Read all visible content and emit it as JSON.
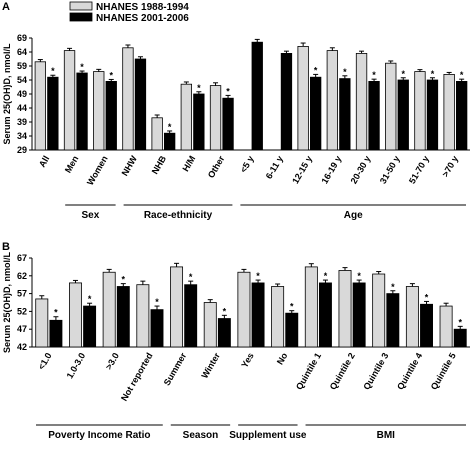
{
  "chart_data": [
    {
      "type": "bar",
      "panel_label": "A",
      "y_label": "Serum 25(OH)D, nmol/L",
      "categories": [
        "All",
        "Men",
        "Women",
        "NHW",
        "NHB",
        "H/M",
        "Other",
        "<5 y",
        "6-11 y",
        "12-15 y",
        "16-19 y",
        "20-30 y",
        "31-50 y",
        "51-70 y",
        ">70 y"
      ],
      "series": [
        {
          "name": "NHANES 1988-1994",
          "color": "#d9d9d9",
          "values": [
            60.5,
            64.5,
            57,
            65.5,
            40.5,
            52.5,
            52,
            null,
            null,
            66,
            64.5,
            63.5,
            60,
            57,
            56
          ],
          "errors": [
            0.8,
            0.8,
            0.8,
            1,
            1,
            0.8,
            1,
            null,
            null,
            1.2,
            1,
            0.8,
            0.8,
            0.7,
            0.7
          ]
        },
        {
          "name": "NHANES 2001-2006",
          "color": "#000000",
          "values": [
            55,
            56.5,
            53.5,
            61.5,
            35,
            49,
            47.5,
            67.5,
            63.5,
            55,
            54.5,
            53.5,
            54,
            54,
            53.5
          ],
          "errors": [
            0.7,
            0.7,
            0.7,
            0.8,
            0.8,
            0.8,
            1,
            1,
            0.8,
            1,
            1,
            0.8,
            0.8,
            0.8,
            0.8
          ]
        }
      ],
      "significance": [
        "*",
        "*",
        "*",
        null,
        "*",
        "*",
        "*",
        null,
        null,
        "*",
        "*",
        "*",
        "*",
        "*",
        "*"
      ],
      "groups": [
        {
          "label": "Sex",
          "start": 1,
          "end": 2
        },
        {
          "label": "Race-ethnicity",
          "start": 3,
          "end": 6
        },
        {
          "label": "Age",
          "start": 7,
          "end": 14
        }
      ],
      "ylim": [
        29,
        69
      ],
      "yticks": [
        29,
        34,
        39,
        44,
        49,
        54,
        59,
        64,
        69
      ],
      "legend": "top-left"
    },
    {
      "type": "bar",
      "panel_label": "B",
      "y_label": "Serum 25(OH)D, nmol/L",
      "categories": [
        "<1.0",
        "1.0-3.0",
        ">3.0",
        "Not reported",
        "Summer",
        "Winter",
        "Yes",
        "No",
        "Quintile 1",
        "Quintile 2",
        "Quintile 3",
        "Quintile 4",
        "Quintile 5"
      ],
      "series": [
        {
          "color": "#d9d9d9",
          "values": [
            55.5,
            60,
            63,
            59.5,
            64.5,
            54.5,
            63,
            59,
            64.5,
            63.5,
            62.5,
            59,
            53.5
          ],
          "errors": [
            0.9,
            0.7,
            0.8,
            1,
            1,
            0.8,
            0.8,
            0.7,
            0.9,
            0.8,
            0.7,
            0.8,
            0.8
          ]
        },
        {
          "color": "#000000",
          "values": [
            49.5,
            53.5,
            59,
            52.5,
            59.5,
            50,
            60,
            51.5,
            60,
            60,
            57,
            54,
            47
          ],
          "errors": [
            1,
            0.8,
            0.8,
            1,
            1,
            0.9,
            0.8,
            0.7,
            0.8,
            0.8,
            0.8,
            0.8,
            0.8
          ]
        }
      ],
      "significance": [
        "*",
        "*",
        "*",
        "*",
        "*",
        "*",
        "*",
        "*",
        "*",
        "*",
        "*",
        "*",
        "*"
      ],
      "groups": [
        {
          "label": "Poverty Income Ratio",
          "start": 0,
          "end": 3
        },
        {
          "label": "Season",
          "start": 4,
          "end": 5
        },
        {
          "label": "Supplement use",
          "start": 6,
          "end": 7
        },
        {
          "label": "BMI",
          "start": 8,
          "end": 12
        }
      ],
      "ylim": [
        42,
        67
      ],
      "yticks": [
        42,
        47,
        52,
        57,
        62,
        67
      ]
    }
  ]
}
